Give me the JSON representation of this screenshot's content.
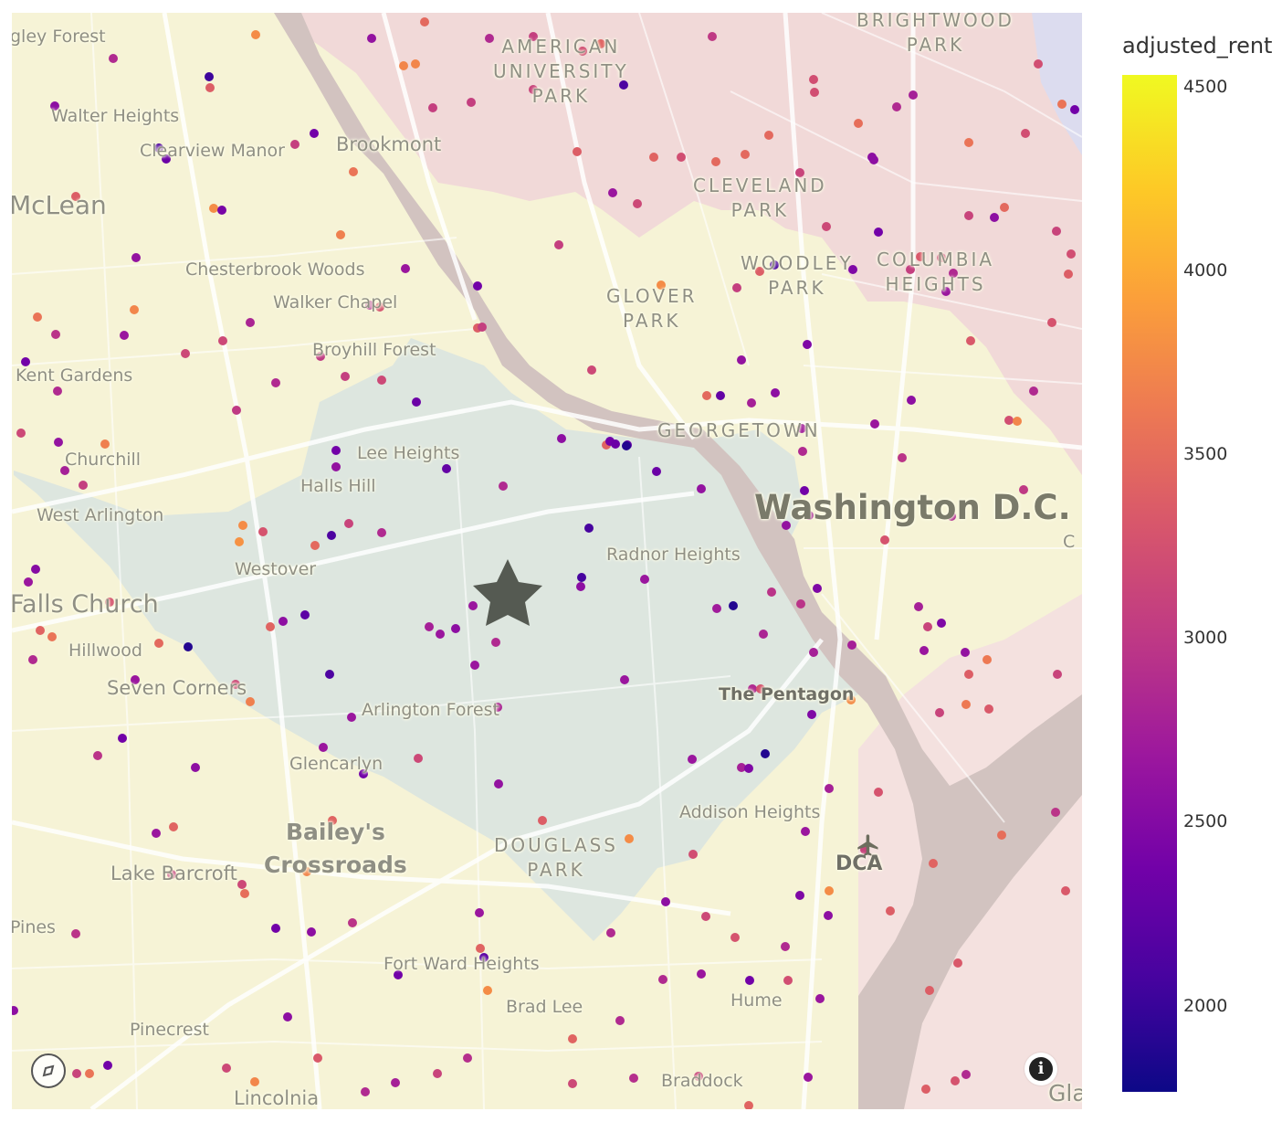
{
  "legend": {
    "title": "adjusted_rent",
    "ticks": [
      "4500",
      "4000",
      "3500",
      "3000",
      "2500",
      "2000"
    ],
    "range": [
      1780,
      4580
    ],
    "colorscale": [
      "#0d0887",
      "#46039f",
      "#7201a8",
      "#9c179e",
      "#bd3786",
      "#d8576b",
      "#ed7953",
      "#fb9f3a",
      "#fdca26",
      "#f0f921"
    ]
  },
  "map": {
    "place_labels": [
      "gley Forest",
      "Walter Heights",
      "Clearview Manor",
      "Brookmont",
      "McLean",
      "Chesterbrook Woods",
      "Walker Chapel",
      "Broyhill Forest",
      "Kent Gardens",
      "Churchill",
      "Lee Heights",
      "Halls Hill",
      "West Arlington",
      "Westover",
      "Falls Church",
      "Hillwood",
      "Seven Corners",
      "Arlington Forest",
      "Glencarlyn",
      "Bailey's",
      "Crossroads",
      "Lake Barcroft",
      "Pines",
      "Fort Ward Heights",
      "Brad Lee",
      "Pinecrest",
      "Lincolnia",
      "Braddock",
      "Hume",
      "Addison Heights",
      "DCA",
      "The Pentagon",
      "Radnor Heights",
      "Washington D.C.",
      "Gla",
      "C"
    ],
    "neighborhood_labels": [
      "AMERICAN\nUNIVERSITY\nPARK",
      "BRIGHTWOOD\nPARK",
      "CLEVELAND\nPARK",
      "WOODLEY\nPARK",
      "COLUMBIA\nHEIGHTS",
      "GLOVER\nPARK",
      "GEORGETOWN",
      "DOUGLASS\nPARK"
    ],
    "marker_icon": "star-icon",
    "airport_icon": "airplane-icon",
    "info_icon": "info-icon",
    "logo_icon": "mapbox-logo-icon"
  },
  "points": [
    [
      124,
      64,
      2900
    ],
    [
      229,
      84,
      2050
    ],
    [
      230,
      96,
      3400
    ],
    [
      60,
      116,
      2600
    ],
    [
      174,
      162,
      2150
    ],
    [
      182,
      174,
      2350
    ],
    [
      323,
      158,
      3100
    ],
    [
      344,
      146,
      2400
    ],
    [
      387,
      188,
      3600
    ],
    [
      83,
      215,
      3400
    ],
    [
      234,
      228,
      3800
    ],
    [
      243,
      230,
      2450
    ],
    [
      373,
      257,
      3700
    ],
    [
      149,
      282,
      2650
    ],
    [
      444,
      294,
      2700
    ],
    [
      41,
      347,
      3600
    ],
    [
      61,
      366,
      3000
    ],
    [
      136,
      367,
      2700
    ],
    [
      147,
      339,
      3750
    ],
    [
      274,
      353,
      2850
    ],
    [
      244,
      373,
      3200
    ],
    [
      405,
      334,
      2900
    ],
    [
      416,
      336,
      3300
    ],
    [
      28,
      396,
      2400
    ],
    [
      203,
      387,
      3200
    ],
    [
      351,
      390,
      3050
    ],
    [
      378,
      412,
      3100
    ],
    [
      418,
      416,
      3200
    ],
    [
      63,
      428,
      2900
    ],
    [
      302,
      419,
      2900
    ],
    [
      259,
      449,
      3050
    ],
    [
      456,
      440,
      2350
    ],
    [
      23,
      474,
      3200
    ],
    [
      64,
      484,
      2650
    ],
    [
      115,
      486,
      3700
    ],
    [
      71,
      515,
      2800
    ],
    [
      91,
      531,
      3100
    ],
    [
      368,
      493,
      2400
    ],
    [
      368,
      511,
      2650
    ],
    [
      489,
      513,
      2300
    ],
    [
      266,
      575,
      3800
    ],
    [
      288,
      582,
      3300
    ],
    [
      262,
      593,
      3850
    ],
    [
      363,
      586,
      2150
    ],
    [
      345,
      597,
      3500
    ],
    [
      382,
      573,
      3150
    ],
    [
      418,
      583,
      2900
    ],
    [
      39,
      623,
      2550
    ],
    [
      31,
      637,
      2700
    ],
    [
      120,
      659,
      3300
    ],
    [
      44,
      690,
      3450
    ],
    [
      57,
      697,
      3600
    ],
    [
      36,
      722,
      2900
    ],
    [
      174,
      704,
      3500
    ],
    [
      206,
      708,
      1900
    ],
    [
      148,
      744,
      2700
    ],
    [
      258,
      749,
      3200
    ],
    [
      274,
      768,
      3700
    ],
    [
      310,
      680,
      2600
    ],
    [
      296,
      686,
      3450
    ],
    [
      334,
      673,
      2250
    ],
    [
      361,
      738,
      2150
    ],
    [
      385,
      785,
      2700
    ],
    [
      134,
      808,
      2400
    ],
    [
      107,
      827,
      3000
    ],
    [
      214,
      840,
      2600
    ],
    [
      354,
      818,
      2700
    ],
    [
      398,
      847,
      2400
    ],
    [
      458,
      830,
      3200
    ],
    [
      171,
      912,
      2700
    ],
    [
      190,
      905,
      3450
    ],
    [
      188,
      957,
      3100
    ],
    [
      265,
      968,
      3200
    ],
    [
      268,
      978,
      3550
    ],
    [
      83,
      1022,
      3000
    ],
    [
      302,
      1016,
      2400
    ],
    [
      341,
      1020,
      2600
    ],
    [
      364,
      898,
      3450
    ],
    [
      336,
      954,
      3750
    ],
    [
      386,
      1010,
      3000
    ],
    [
      15,
      1106,
      2600
    ],
    [
      84,
      1175,
      3150
    ],
    [
      98,
      1175,
      3600
    ],
    [
      118,
      1166,
      2400
    ],
    [
      248,
      1169,
      3200
    ],
    [
      279,
      1184,
      3750
    ],
    [
      315,
      1113,
      2600
    ],
    [
      348,
      1158,
      3350
    ],
    [
      400,
      1195,
      2900
    ],
    [
      433,
      1185,
      2800
    ],
    [
      479,
      1175,
      3150
    ],
    [
      436,
      1067,
      2400
    ],
    [
      512,
      1158,
      2950
    ],
    [
      534,
      1084,
      3800
    ],
    [
      526,
      1038,
      3450
    ],
    [
      530,
      1048,
      2250
    ],
    [
      525,
      999,
      2700
    ],
    [
      465,
      24,
      3500
    ],
    [
      407,
      42,
      2650
    ],
    [
      280,
      38,
      3800
    ],
    [
      442,
      72,
      3750
    ],
    [
      455,
      70,
      3750
    ],
    [
      474,
      118,
      3100
    ],
    [
      516,
      112,
      3100
    ],
    [
      536,
      42,
      2900
    ],
    [
      584,
      40,
      3100
    ],
    [
      584,
      98,
      3150
    ],
    [
      638,
      56,
      3250
    ],
    [
      658,
      48,
      3450
    ],
    [
      683,
      93,
      2150
    ],
    [
      780,
      40,
      3050
    ],
    [
      632,
      166,
      3400
    ],
    [
      716,
      172,
      3450
    ],
    [
      746,
      172,
      3250
    ],
    [
      671,
      211,
      2700
    ],
    [
      698,
      223,
      3200
    ],
    [
      612,
      268,
      3100
    ],
    [
      784,
      177,
      3500
    ],
    [
      816,
      169,
      3500
    ],
    [
      842,
      148,
      3500
    ],
    [
      876,
      189,
      3150
    ],
    [
      891,
      87,
      3250
    ],
    [
      892,
      101,
      3250
    ],
    [
      940,
      135,
      3550
    ],
    [
      1000,
      104,
      2800
    ],
    [
      982,
      117,
      2900
    ],
    [
      955,
      172,
      2600
    ],
    [
      957,
      175,
      2600
    ],
    [
      1061,
      156,
      3600
    ],
    [
      1123,
      146,
      3250
    ],
    [
      1137,
      70,
      3250
    ],
    [
      1163,
      114,
      3600
    ],
    [
      1177,
      120,
      2400
    ],
    [
      905,
      248,
      3200
    ],
    [
      962,
      254,
      2400
    ],
    [
      1008,
      281,
      3350
    ],
    [
      1031,
      282,
      3200
    ],
    [
      1100,
      227,
      3500
    ],
    [
      1089,
      238,
      2600
    ],
    [
      1061,
      236,
      3150
    ],
    [
      1157,
      253,
      3150
    ],
    [
      1173,
      278,
      3250
    ],
    [
      1170,
      300,
      3400
    ],
    [
      997,
      295,
      3100
    ],
    [
      1044,
      299,
      2900
    ],
    [
      1036,
      319,
      2700
    ],
    [
      934,
      295,
      2500
    ],
    [
      848,
      290,
      2100
    ],
    [
      832,
      297,
      3400
    ],
    [
      807,
      315,
      3100
    ],
    [
      724,
      312,
      3800
    ],
    [
      523,
      313,
      2400
    ],
    [
      523,
      359,
      3400
    ],
    [
      528,
      358,
      3100
    ],
    [
      648,
      405,
      3200
    ],
    [
      774,
      433,
      3500
    ],
    [
      789,
      433,
      2300
    ],
    [
      812,
      394,
      2650
    ],
    [
      823,
      441,
      2800
    ],
    [
      849,
      430,
      2600
    ],
    [
      884,
      377,
      2500
    ],
    [
      958,
      464,
      2700
    ],
    [
      998,
      438,
      2600
    ],
    [
      988,
      501,
      3000
    ],
    [
      1063,
      373,
      3350
    ],
    [
      1105,
      460,
      3250
    ],
    [
      1114,
      461,
      3750
    ],
    [
      1132,
      428,
      2900
    ],
    [
      1152,
      353,
      3300
    ],
    [
      878,
      469,
      2750
    ],
    [
      879,
      494,
      2900
    ],
    [
      881,
      537,
      2400
    ],
    [
      861,
      575,
      2650
    ],
    [
      886,
      564,
      2800
    ],
    [
      969,
      591,
      3300
    ],
    [
      1042,
      565,
      2900
    ],
    [
      1121,
      536,
      3050
    ],
    [
      615,
      480,
      2600
    ],
    [
      664,
      487,
      3450
    ],
    [
      668,
      483,
      2400
    ],
    [
      674,
      486,
      2350
    ],
    [
      687,
      487,
      2300
    ],
    [
      686,
      488,
      1900
    ],
    [
      719,
      516,
      2350
    ],
    [
      768,
      535,
      2650
    ],
    [
      551,
      532,
      2900
    ],
    [
      645,
      578,
      2100
    ],
    [
      637,
      632,
      2100
    ],
    [
      636,
      642,
      2600
    ],
    [
      706,
      634,
      2700
    ],
    [
      518,
      663,
      2700
    ],
    [
      470,
      686,
      2800
    ],
    [
      482,
      694,
      2700
    ],
    [
      499,
      688,
      2600
    ],
    [
      543,
      703,
      2900
    ],
    [
      520,
      728,
      2700
    ],
    [
      684,
      744,
      2700
    ],
    [
      785,
      666,
      2750
    ],
    [
      803,
      663,
      1900
    ],
    [
      845,
      648,
      3000
    ],
    [
      877,
      661,
      3000
    ],
    [
      895,
      644,
      2500
    ],
    [
      836,
      694,
      2850
    ],
    [
      891,
      714,
      2800
    ],
    [
      933,
      706,
      2800
    ],
    [
      1006,
      664,
      2800
    ],
    [
      1016,
      686,
      3150
    ],
    [
      1031,
      682,
      2500
    ],
    [
      1012,
      712,
      2700
    ],
    [
      1057,
      714,
      2650
    ],
    [
      1081,
      722,
      3650
    ],
    [
      1061,
      738,
      3400
    ],
    [
      1158,
      738,
      3150
    ],
    [
      932,
      766,
      3800
    ],
    [
      1029,
      780,
      3150
    ],
    [
      1058,
      771,
      3650
    ],
    [
      1083,
      776,
      3350
    ],
    [
      824,
      754,
      2900
    ],
    [
      833,
      754,
      3300
    ],
    [
      889,
      782,
      2500
    ],
    [
      545,
      774,
      2850
    ],
    [
      758,
      831,
      2700
    ],
    [
      812,
      840,
      2800
    ],
    [
      820,
      841,
      2500
    ],
    [
      838,
      825,
      1900
    ],
    [
      546,
      858,
      2650
    ],
    [
      594,
      898,
      3400
    ],
    [
      689,
      918,
      3800
    ],
    [
      759,
      935,
      3250
    ],
    [
      908,
      863,
      2800
    ],
    [
      882,
      910,
      2700
    ],
    [
      947,
      930,
      3150
    ],
    [
      962,
      867,
      3300
    ],
    [
      1022,
      945,
      3450
    ],
    [
      1097,
      914,
      3550
    ],
    [
      1156,
      889,
      3000
    ],
    [
      876,
      980,
      2500
    ],
    [
      908,
      975,
      3800
    ],
    [
      907,
      1002,
      2600
    ],
    [
      975,
      997,
      3400
    ],
    [
      1167,
      975,
      3350
    ],
    [
      1049,
      1054,
      3350
    ],
    [
      729,
      987,
      2600
    ],
    [
      773,
      1003,
      3200
    ],
    [
      805,
      1026,
      3300
    ],
    [
      860,
      1036,
      2900
    ],
    [
      669,
      1021,
      2900
    ],
    [
      726,
      1072,
      2900
    ],
    [
      768,
      1066,
      2700
    ],
    [
      821,
      1073,
      2400
    ],
    [
      863,
      1073,
      3250
    ],
    [
      898,
      1093,
      2700
    ],
    [
      1018,
      1084,
      3400
    ],
    [
      679,
      1117,
      2900
    ],
    [
      627,
      1137,
      3450
    ],
    [
      694,
      1180,
      2950
    ],
    [
      627,
      1186,
      3200
    ],
    [
      765,
      1178,
      3150
    ],
    [
      820,
      1210,
      3450
    ],
    [
      885,
      1179,
      2700
    ],
    [
      1014,
      1192,
      3400
    ],
    [
      1046,
      1183,
      3300
    ],
    [
      1058,
      1176,
      2900
    ]
  ]
}
